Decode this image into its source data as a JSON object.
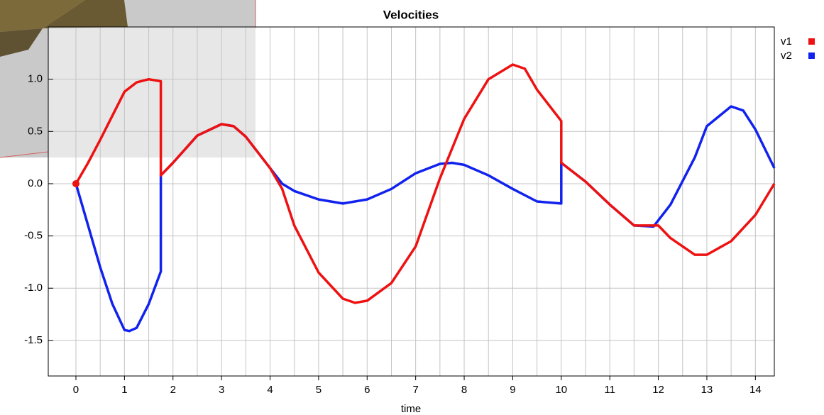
{
  "chart_data": {
    "type": "line",
    "title": "Velocities",
    "x_label": "time",
    "xlim": [
      -0.57,
      14.39
    ],
    "ylim": [
      -1.84,
      1.5
    ],
    "xticks": [
      0,
      1,
      2,
      3,
      4,
      5,
      6,
      7,
      8,
      9,
      10,
      11,
      12,
      13,
      14
    ],
    "x_minor_ticks": [
      0.5,
      1.5,
      2.5,
      3.5,
      4.5,
      5.5,
      6.5,
      7.5,
      8.5,
      9.5,
      10.5,
      11.5,
      12.5,
      13.5
    ],
    "yticks": [
      {
        "value": 1,
        "label": "1.0"
      },
      0.5,
      {
        "value": 0,
        "label": "0.0"
      },
      -0.5,
      {
        "value": -1,
        "label": "-1.0"
      },
      -1.5
    ],
    "grid": true,
    "legend": "top-right",
    "series": [
      {
        "name": "v1",
        "color": "#ee1111",
        "x": [
          0,
          0.25,
          0.5,
          0.75,
          1.0,
          1.25,
          1.5,
          1.75,
          1.75,
          2.0,
          2.5,
          3.0,
          3.25,
          3.5,
          4.0,
          4.25,
          4.5,
          5.0,
          5.5,
          5.75,
          6.0,
          6.5,
          7.0,
          7.5,
          8.0,
          8.5,
          9.0,
          9.25,
          9.5,
          10.0,
          10.0,
          10.5,
          11.0,
          11.5,
          12.0,
          12.25,
          12.75,
          13.0,
          13.5,
          14.0,
          14.39
        ],
        "values": [
          0,
          0.2,
          0.42,
          0.65,
          0.88,
          0.97,
          1.0,
          0.98,
          0.08,
          0.2,
          0.46,
          0.57,
          0.55,
          0.45,
          0.15,
          -0.05,
          -0.4,
          -0.85,
          -1.1,
          -1.14,
          -1.12,
          -0.95,
          -0.6,
          0.05,
          0.62,
          1.0,
          1.14,
          1.1,
          0.9,
          0.6,
          0.2,
          0.02,
          -0.2,
          -0.4,
          -0.4,
          -0.52,
          -0.68,
          -0.68,
          -0.55,
          -0.3,
          0.0
        ]
      },
      {
        "name": "v2",
        "color": "#1122ee",
        "x": [
          0,
          0.25,
          0.5,
          0.75,
          1.0,
          1.1,
          1.25,
          1.5,
          1.75,
          1.75,
          2.0,
          2.5,
          3.0,
          3.25,
          3.5,
          4.0,
          4.25,
          4.5,
          5.0,
          5.5,
          6.0,
          6.5,
          7.0,
          7.5,
          7.75,
          8.0,
          8.5,
          9.0,
          9.5,
          10.0,
          10.0,
          10.5,
          11.0,
          11.5,
          11.9,
          12.25,
          12.75,
          13.0,
          13.5,
          13.75,
          14.0,
          14.39
        ],
        "values": [
          0,
          -0.4,
          -0.8,
          -1.15,
          -1.4,
          -1.41,
          -1.38,
          -1.15,
          -0.84,
          0.08,
          0.2,
          0.46,
          0.57,
          0.55,
          0.45,
          0.15,
          0.0,
          -0.07,
          -0.15,
          -0.19,
          -0.15,
          -0.05,
          0.1,
          0.19,
          0.2,
          0.18,
          0.08,
          -0.05,
          -0.17,
          -0.19,
          0.2,
          0.02,
          -0.2,
          -0.4,
          -0.41,
          -0.2,
          0.25,
          0.55,
          0.74,
          0.7,
          0.52,
          0.15
        ]
      }
    ]
  }
}
